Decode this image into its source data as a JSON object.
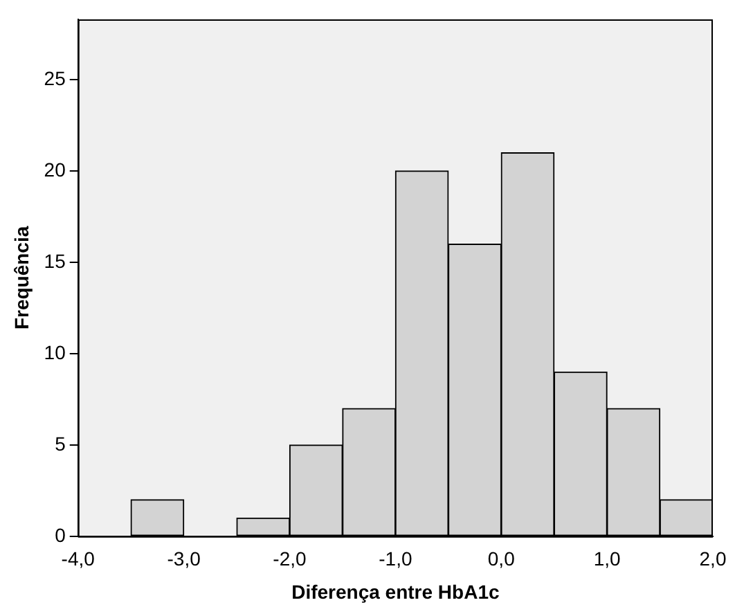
{
  "chart_data": {
    "type": "histogram",
    "xlabel": "Diferença entre HbA1c",
    "ylabel": "Frequência",
    "bins": [
      -4,
      -3.5,
      -3,
      -2.5,
      -2,
      -1.5,
      -1,
      -0.5,
      0,
      0.5,
      1,
      1.5,
      2
    ],
    "values": [
      0,
      2,
      0,
      1,
      5,
      7,
      20,
      16,
      21,
      9,
      7,
      2
    ],
    "color": "#d3d3d3",
    "xlim": [
      -4,
      2
    ],
    "xticks": [
      {
        "value": -4,
        "label": "-4,0"
      },
      {
        "value": -3,
        "label": "-3,0"
      },
      {
        "value": -2,
        "label": "-2,0"
      },
      {
        "value": -1,
        "label": "-1,0"
      },
      {
        "value": 0,
        "label": "0,0"
      },
      {
        "value": 1,
        "label": "1,0"
      },
      {
        "value": 2,
        "label": "2,0"
      }
    ],
    "ylim": [
      0,
      28.3
    ],
    "yticks": [
      0,
      5,
      10,
      15,
      20,
      25
    ],
    "grid": false,
    "legend": false
  }
}
